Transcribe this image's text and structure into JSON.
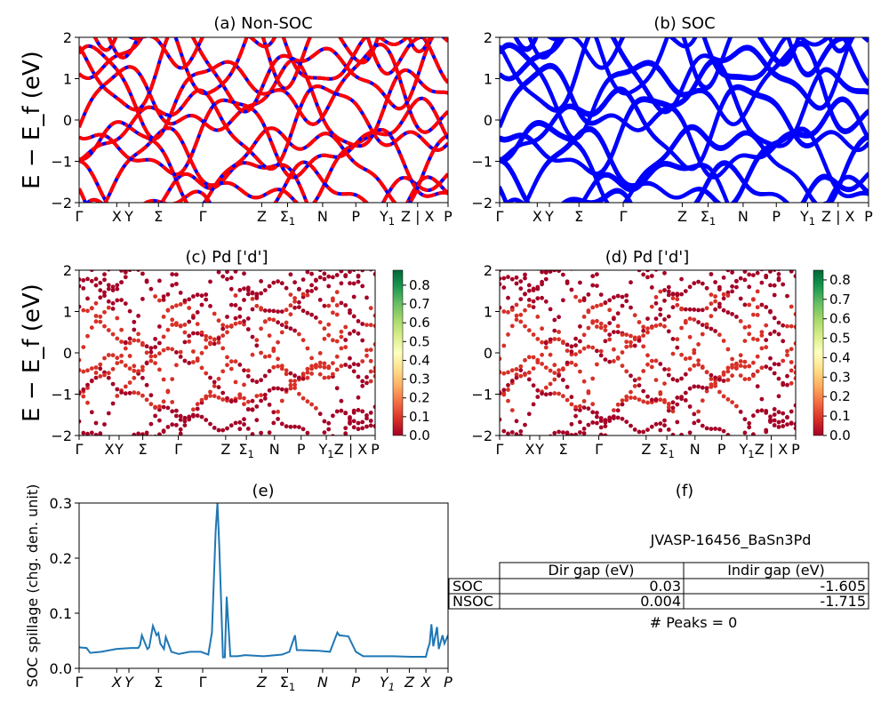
{
  "figure": {
    "energy_ylabel": "E − E_f (eV)",
    "spillage_ylabel": "SOC spillage (chg. den. unit)"
  },
  "panels": {
    "a": {
      "title": "(a) Non-SOC"
    },
    "b": {
      "title": "(b) SOC"
    },
    "c": {
      "title": "(c)  Pd ['d']",
      "colorbar_ticks": [
        "0.0",
        "0.1",
        "0.2",
        "0.3",
        "0.4",
        "0.5",
        "0.6",
        "0.7",
        "0.8"
      ]
    },
    "d": {
      "title": "(d) Pd ['d']",
      "colorbar_ticks": [
        "0.0",
        "0.1",
        "0.2",
        "0.3",
        "0.4",
        "0.5",
        "0.6",
        "0.7",
        "0.8"
      ]
    },
    "e": {
      "title": "(e)"
    },
    "f": {
      "title": "(f)",
      "material": "JVASP-16456_BaSn3Pd",
      "table": {
        "headers": [
          "Dir gap (eV)",
          "Indir gap (eV)"
        ],
        "rows": [
          {
            "label": "SOC",
            "dir": "0.03",
            "indir": "-1.605"
          },
          {
            "label": "NSOC",
            "dir": "0.004",
            "indir": "-1.715"
          }
        ]
      },
      "peaks_text": "# Peaks = 0"
    }
  },
  "k_labels_band": [
    "Γ",
    "X",
    "Y",
    "Σ",
    "Γ",
    "Z",
    "Σ1",
    "N",
    "P",
    "Y1",
    "Z | X",
    "P"
  ],
  "k_labels_spillage": [
    "Γ",
    "X",
    "Y",
    "Σ",
    "Γ",
    "Z",
    "Σ1",
    "N",
    "P",
    "Y1",
    "Z",
    "X",
    "P"
  ],
  "colors": {
    "nonsoc_up": "#ff0000",
    "nonsoc_dn": "#0000ff",
    "soc": "#0000ff",
    "spillage": "#1f77b4"
  },
  "chart_data": [
    {
      "type": "line",
      "title": "(a) Non-SOC",
      "ylabel": "E − E_f (eV)",
      "ylim": [
        -2,
        2
      ],
      "yticks": [
        -2,
        -1,
        0,
        1,
        2
      ],
      "k_positions": [
        0,
        0.102,
        0.135,
        0.215,
        0.335,
        0.495,
        0.565,
        0.66,
        0.75,
        0.835,
        0.895,
        0.94,
        1.0
      ],
      "series_note": "spin-up (red) and spin-down (blue dashed) bands overlap"
    },
    {
      "type": "line",
      "title": "(b) SOC",
      "ylabel": "",
      "ylim": [
        -2,
        2
      ],
      "yticks": [
        -2,
        -1,
        0,
        1,
        2
      ]
    },
    {
      "type": "scatter",
      "title": "(c)  Pd ['d']",
      "ylim": [
        -2,
        2
      ],
      "colorbar_range": [
        0.0,
        0.88
      ]
    },
    {
      "type": "scatter",
      "title": "(d) Pd ['d']",
      "ylim": [
        -2,
        2
      ],
      "colorbar_range": [
        0.0,
        0.85
      ]
    },
    {
      "type": "line",
      "title": "(e)",
      "ylabel": "SOC spillage (chg. den. unit)",
      "ylim": [
        0,
        0.3
      ],
      "yticks": [
        0.0,
        0.1,
        0.2,
        0.3
      ],
      "series": [
        {
          "x": [
            0,
            0.02,
            0.03,
            0.06,
            0.1,
            0.14,
            0.16,
            0.165,
            0.17,
            0.185,
            0.19,
            0.2,
            0.21,
            0.215,
            0.22,
            0.23,
            0.235,
            0.25,
            0.27,
            0.3,
            0.33,
            0.35,
            0.36,
            0.37,
            0.375,
            0.38,
            0.39,
            0.395,
            0.4,
            0.41,
            0.43,
            0.45,
            0.5,
            0.55,
            0.57,
            0.585,
            0.59,
            0.6,
            0.65,
            0.68,
            0.7,
            0.705,
            0.73,
            0.75,
            0.77,
            0.8,
            0.85,
            0.9,
            0.94,
            0.945,
            0.95,
            0.955,
            0.96,
            0.97,
            0.975,
            0.985,
            0.99,
            1.0
          ],
          "y": [
            0.038,
            0.037,
            0.028,
            0.03,
            0.035,
            0.037,
            0.037,
            0.042,
            0.06,
            0.035,
            0.038,
            0.077,
            0.06,
            0.064,
            0.045,
            0.035,
            0.057,
            0.03,
            0.026,
            0.03,
            0.03,
            0.025,
            0.065,
            0.25,
            0.3,
            0.22,
            0.02,
            0.02,
            0.13,
            0.022,
            0.022,
            0.024,
            0.022,
            0.025,
            0.03,
            0.06,
            0.033,
            0.033,
            0.032,
            0.03,
            0.065,
            0.06,
            0.058,
            0.03,
            0.022,
            0.022,
            0.022,
            0.021,
            0.021,
            0.035,
            0.045,
            0.08,
            0.04,
            0.075,
            0.035,
            0.06,
            0.045,
            0.06
          ]
        }
      ]
    }
  ]
}
